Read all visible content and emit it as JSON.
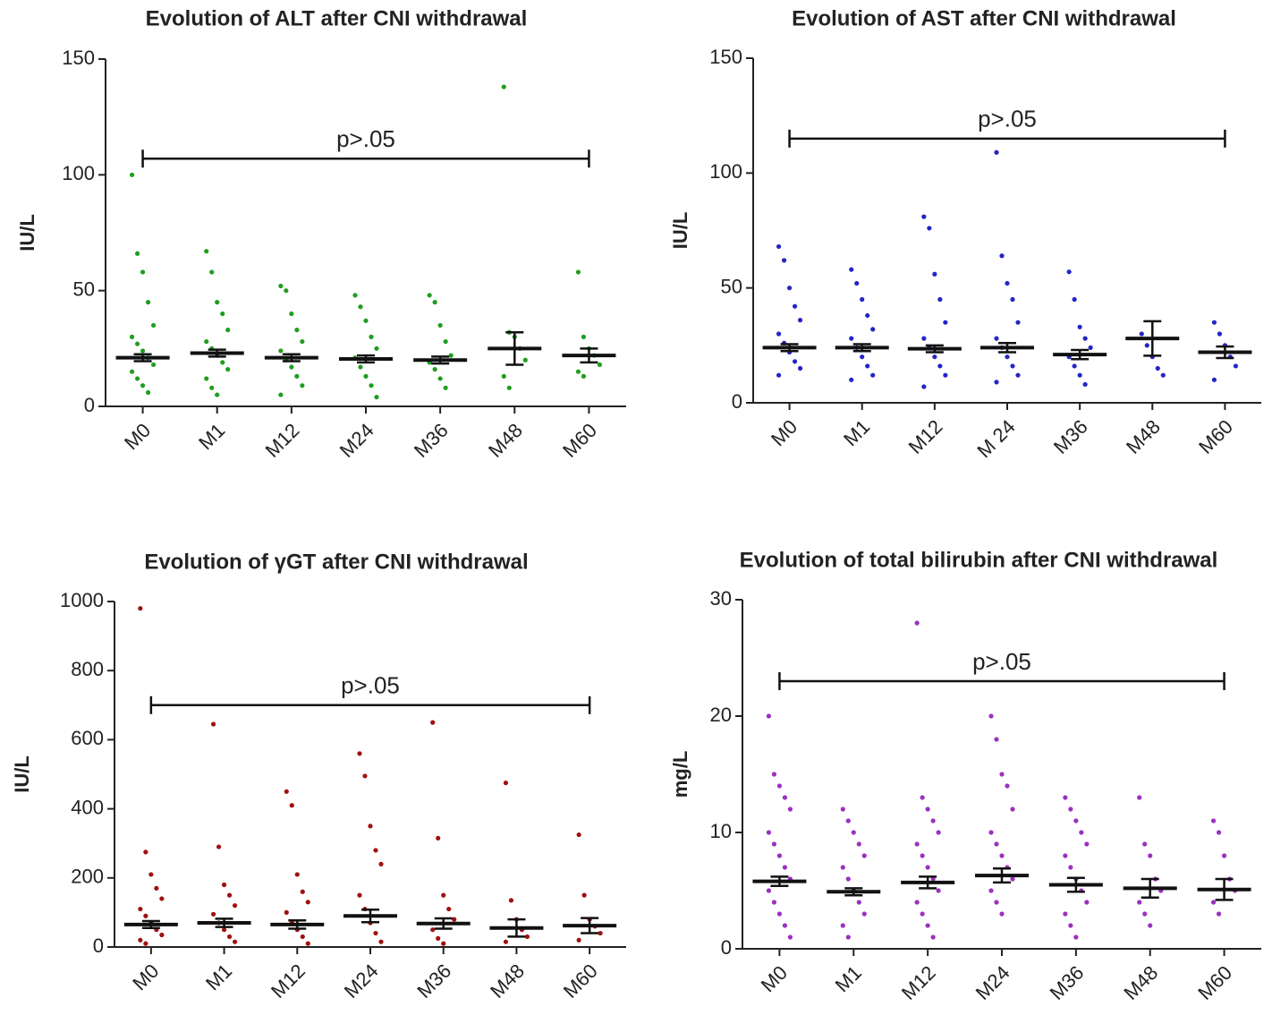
{
  "chart_data": [
    {
      "type": "dotplot",
      "title": "Evolution of ALT after CNI withdrawal",
      "ylabel": "IU/L",
      "color": "#1f9e1f",
      "categories": [
        "M0",
        "M1",
        "M12",
        "M24",
        "M36",
        "M48",
        "M60"
      ],
      "values": [
        21,
        23,
        21,
        20.5,
        20,
        25,
        22
      ],
      "errors": [
        1.5,
        1.5,
        1.5,
        1.5,
        1.5,
        7,
        3
      ],
      "points": [
        [
          100,
          66,
          58,
          45,
          35,
          30,
          27,
          24,
          21,
          18,
          15,
          12,
          9,
          6
        ],
        [
          67,
          58,
          45,
          40,
          33,
          28,
          25,
          22,
          19,
          16,
          12,
          8,
          5
        ],
        [
          52,
          50,
          40,
          33,
          28,
          24,
          20,
          17,
          13,
          9,
          5
        ],
        [
          48,
          43,
          37,
          30,
          25,
          21,
          17,
          13,
          9,
          4
        ],
        [
          48,
          45,
          35,
          28,
          22,
          19,
          16,
          12,
          8
        ],
        [
          138,
          32,
          30,
          25,
          20,
          13,
          8
        ],
        [
          58,
          30,
          25,
          22,
          18,
          15,
          13
        ]
      ],
      "annotation": "p>.05",
      "bracket_y": 107,
      "ylim": [
        0,
        150
      ],
      "yticks": [
        0,
        50,
        100,
        150
      ]
    },
    {
      "type": "dotplot",
      "title": "Evolution of AST after CNI withdrawal",
      "ylabel": "IU/L",
      "color": "#2424c8",
      "categories": [
        "M0",
        "M1",
        "M12",
        "M 24",
        "M36",
        "M48",
        "M60"
      ],
      "values": [
        24,
        24,
        23.5,
        24,
        21,
        28,
        22
      ],
      "errors": [
        1.5,
        1.5,
        1.5,
        2,
        2,
        7.5,
        2.5
      ],
      "points": [
        [
          68,
          62,
          50,
          42,
          36,
          30,
          26,
          22,
          18,
          15,
          12
        ],
        [
          58,
          52,
          45,
          38,
          32,
          28,
          24,
          20,
          16,
          12,
          10
        ],
        [
          81,
          76,
          56,
          45,
          35,
          28,
          24,
          20,
          16,
          12,
          7
        ],
        [
          109,
          64,
          52,
          45,
          35,
          28,
          24,
          20,
          16,
          12,
          9
        ],
        [
          57,
          45,
          33,
          28,
          24,
          20,
          16,
          12,
          8
        ],
        [
          30,
          25,
          20,
          15,
          12
        ],
        [
          35,
          30,
          25,
          20,
          16,
          10
        ]
      ],
      "annotation": "p>.05",
      "bracket_y": 115,
      "ylim": [
        0,
        150
      ],
      "yticks": [
        0,
        50,
        100,
        150
      ]
    },
    {
      "type": "dotplot",
      "title": "Evolution of γGT after CNI withdrawal",
      "ylabel": "IU/L",
      "color": "#a01010",
      "categories": [
        "M0",
        "M1",
        "M12",
        "M24",
        "M36",
        "M48",
        "M60"
      ],
      "values": [
        65,
        70,
        65,
        90,
        68,
        55,
        62
      ],
      "errors": [
        10,
        12,
        12,
        18,
        15,
        25,
        22
      ],
      "points": [
        [
          980,
          275,
          210,
          170,
          140,
          110,
          90,
          70,
          50,
          35,
          20,
          10
        ],
        [
          645,
          290,
          180,
          150,
          120,
          95,
          70,
          50,
          30,
          15
        ],
        [
          450,
          410,
          210,
          160,
          130,
          100,
          70,
          50,
          30,
          10
        ],
        [
          560,
          495,
          350,
          280,
          240,
          150,
          110,
          70,
          40,
          15
        ],
        [
          650,
          315,
          150,
          110,
          80,
          50,
          25,
          10
        ],
        [
          475,
          135,
          80,
          50,
          30,
          15
        ],
        [
          325,
          150,
          80,
          60,
          40,
          20
        ]
      ],
      "annotation": "p>.05",
      "bracket_y": 700,
      "ylim": [
        0,
        1000
      ],
      "yticks": [
        0,
        200,
        400,
        600,
        800,
        1000
      ]
    },
    {
      "type": "dotplot",
      "title": "Evolution of total bilirubin after CNI withdrawal",
      "ylabel": "mg/L",
      "color": "#9b30c0",
      "categories": [
        "M0",
        "M1",
        "M12",
        "M24",
        "M36",
        "M48",
        "M60"
      ],
      "values": [
        5.8,
        4.9,
        5.7,
        6.3,
        5.5,
        5.2,
        5.1
      ],
      "errors": [
        0.4,
        0.3,
        0.5,
        0.6,
        0.6,
        0.8,
        0.9
      ],
      "points": [
        [
          20,
          15,
          14,
          13,
          12,
          10,
          9,
          8,
          7,
          6,
          5,
          4,
          3,
          2,
          1
        ],
        [
          12,
          11,
          10,
          9,
          8,
          7,
          6,
          5,
          4,
          3,
          2,
          1
        ],
        [
          28,
          13,
          12,
          11,
          10,
          9,
          8,
          7,
          6,
          5,
          4,
          3,
          2,
          1
        ],
        [
          20,
          18,
          15,
          14,
          12,
          10,
          9,
          8,
          7,
          6,
          5,
          4,
          3
        ],
        [
          13,
          12,
          11,
          10,
          9,
          8,
          7,
          6,
          5,
          4,
          3,
          2,
          1
        ],
        [
          13,
          9,
          8,
          6,
          5,
          4,
          3,
          2
        ],
        [
          11,
          10,
          8,
          6,
          5,
          4,
          3
        ]
      ],
      "annotation": "p>.05",
      "bracket_y": 23,
      "ylim": [
        0,
        30
      ],
      "yticks": [
        0,
        10,
        20,
        30
      ]
    }
  ]
}
